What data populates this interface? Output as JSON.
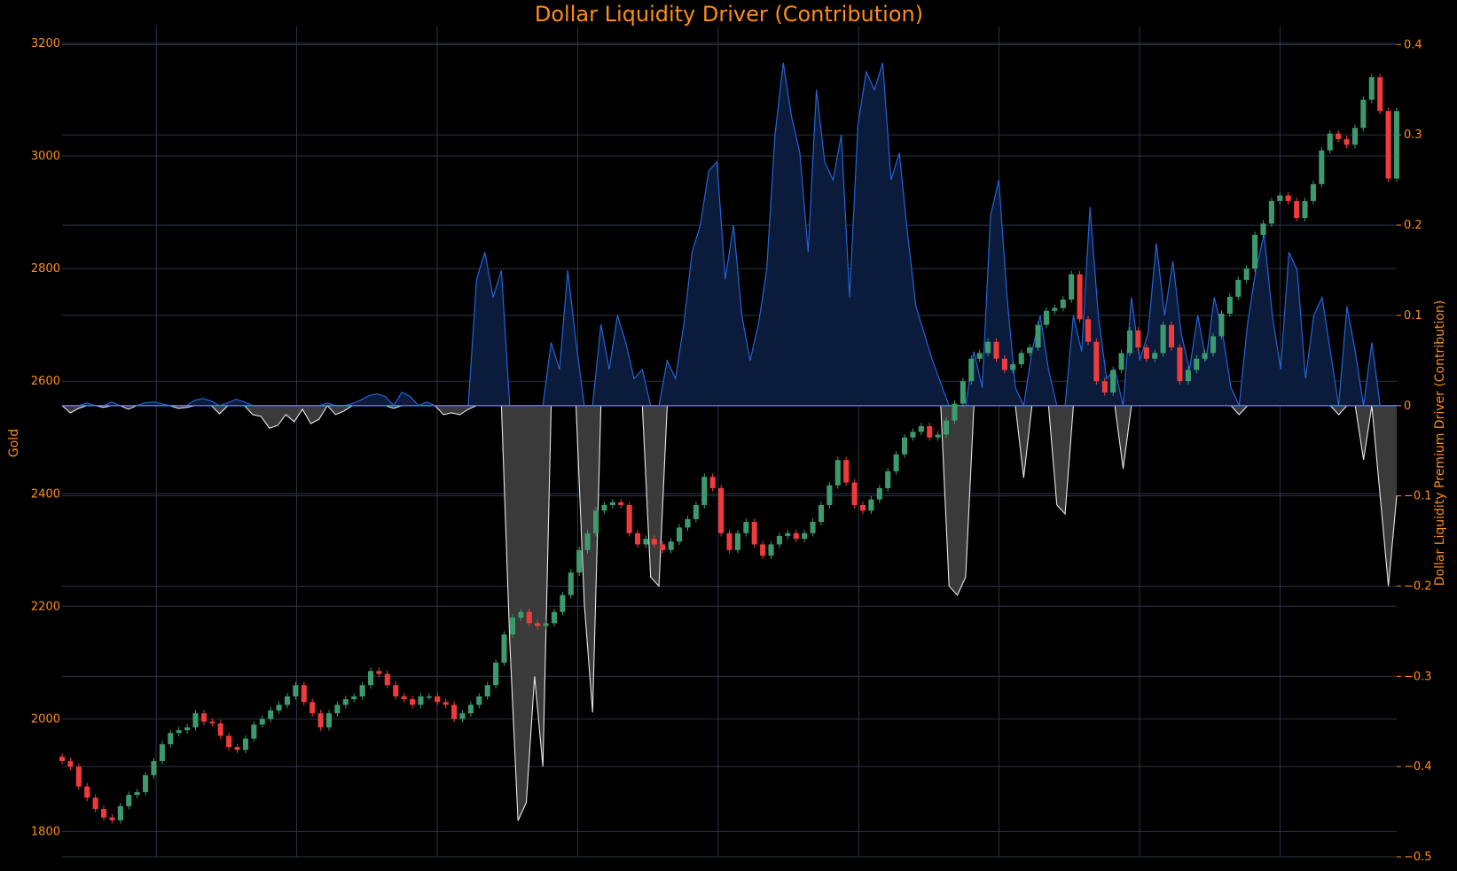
{
  "chart_data": {
    "type": "candlestick+area",
    "title": "Dollar Liquidity Driver (Contribution)",
    "y_left": {
      "label": "Gold",
      "ticks": [
        "1800",
        "2000",
        "2200",
        "2400",
        "2600",
        "2800",
        "3000",
        "3200"
      ],
      "range": [
        1755,
        3230
      ]
    },
    "y_right": {
      "label": "Dollar Liquidity Premium Driver (Contribution)",
      "ticks": [
        "−0.5",
        "−0.4",
        "−0.3",
        "−0.2",
        "−0.1",
        "0",
        "0.1",
        "0.2",
        "0.3",
        "0.4"
      ],
      "range": [
        -0.5,
        0.42
      ]
    },
    "grid": true,
    "colors": {
      "background": "#000000",
      "grid": "#2a3446",
      "text": "#ff8c1a",
      "candle_up": "#3d9a6e",
      "candle_down": "#ef3b3b",
      "positive_line": "#2463d6",
      "positive_fill": "#0b1b3c",
      "negative_line": "#e8e8e8",
      "negative_fill": "#3a3a3a",
      "zero_line": "#3a78ff"
    },
    "series": [
      {
        "kind": "candlestick",
        "y_axis": "left",
        "close": [
          1925,
          1915,
          1880,
          1860,
          1840,
          1825,
          1820,
          1845,
          1865,
          1870,
          1900,
          1925,
          1955,
          1975,
          1980,
          1985,
          2010,
          1995,
          1992,
          1970,
          1950,
          1945,
          1965,
          1990,
          2000,
          2015,
          2025,
          2040,
          2060,
          2030,
          2010,
          1985,
          2010,
          2025,
          2035,
          2040,
          2060,
          2085,
          2080,
          2060,
          2040,
          2035,
          2025,
          2040,
          2040,
          2030,
          2025,
          2000,
          2010,
          2025,
          2040,
          2060,
          2100,
          2150,
          2180,
          2190,
          2170,
          2165,
          2170,
          2190,
          2220,
          2260,
          2300,
          2330,
          2370,
          2380,
          2385,
          2380,
          2330,
          2310,
          2320,
          2310,
          2300,
          2315,
          2340,
          2355,
          2380,
          2430,
          2410,
          2330,
          2300,
          2330,
          2350,
          2310,
          2290,
          2310,
          2325,
          2330,
          2320,
          2330,
          2350,
          2380,
          2415,
          2460,
          2420,
          2380,
          2370,
          2390,
          2410,
          2440,
          2470,
          2500,
          2510,
          2520,
          2500,
          2505,
          2530,
          2560,
          2600,
          2640,
          2650,
          2670,
          2640,
          2620,
          2630,
          2650,
          2660,
          2700,
          2725,
          2730,
          2745,
          2790,
          2710,
          2670,
          2600,
          2580,
          2620,
          2650,
          2690,
          2660,
          2640,
          2650,
          2700,
          2660,
          2600,
          2620,
          2640,
          2650,
          2680,
          2720,
          2750,
          2780,
          2800,
          2860,
          2880,
          2920,
          2930,
          2920,
          2890,
          2920,
          2950,
          3010,
          3040,
          3030,
          3020,
          3050,
          3100,
          3140,
          3080,
          2960,
          3080
        ]
      },
      {
        "kind": "area",
        "y_axis": "right",
        "values": [
          0,
          -0.008,
          -0.003,
          0.003,
          0,
          -0.002,
          0.004,
          0,
          -0.004,
          0,
          0.003,
          0.004,
          0.002,
          0,
          -0.003,
          -0.002,
          0.006,
          0.008,
          0.005,
          -0.009,
          0.003,
          0.007,
          0.004,
          -0.01,
          -0.012,
          -0.025,
          -0.022,
          -0.01,
          -0.018,
          -0.004,
          -0.02,
          -0.015,
          0.003,
          -0.01,
          -0.006,
          0.002,
          0.006,
          0.011,
          0.013,
          0.01,
          -0.003,
          0.015,
          0.01,
          0,
          0.004,
          0,
          -0.01,
          -0.008,
          -0.01,
          -0.004,
          0.14,
          0.17,
          0.12,
          0.15,
          -0.26,
          -0.46,
          -0.44,
          -0.3,
          -0.4,
          0.07,
          0.04,
          0.15,
          0.07,
          -0.22,
          -0.34,
          0.09,
          0.04,
          0.1,
          0.07,
          0.03,
          0.04,
          -0.19,
          -0.2,
          0.05,
          0.03,
          0.09,
          0.17,
          0.2,
          0.26,
          0.27,
          0.14,
          0.2,
          0.1,
          0.05,
          0.09,
          0.15,
          0.3,
          0.38,
          0.32,
          0.28,
          0.17,
          0.35,
          0.27,
          0.25,
          0.3,
          0.12,
          0.31,
          0.37,
          0.35,
          0.38,
          0.25,
          0.28,
          0.19,
          0.11,
          0.08,
          0.05,
          0.025,
          -0.2,
          -0.21,
          -0.19,
          0.06,
          0.02,
          0.21,
          0.25,
          0.12,
          0.02,
          -0.08,
          0.06,
          0.1,
          0.04,
          -0.11,
          -0.12,
          0.1,
          0.06,
          0.22,
          0.1,
          0.03,
          0.04,
          -0.07,
          0.12,
          0.05,
          0.08,
          0.18,
          0.1,
          0.16,
          0.08,
          0.04,
          0.1,
          0.05,
          0.12,
          0.08,
          0.02,
          -0.01,
          0.09,
          0.15,
          0.19,
          0.1,
          0.04,
          0.17,
          0.15,
          0.03,
          0.1,
          0.12,
          0.06,
          -0.01,
          0.11,
          0.06,
          -0.06,
          0.07,
          -0.1,
          -0.2,
          -0.1
        ]
      }
    ]
  }
}
